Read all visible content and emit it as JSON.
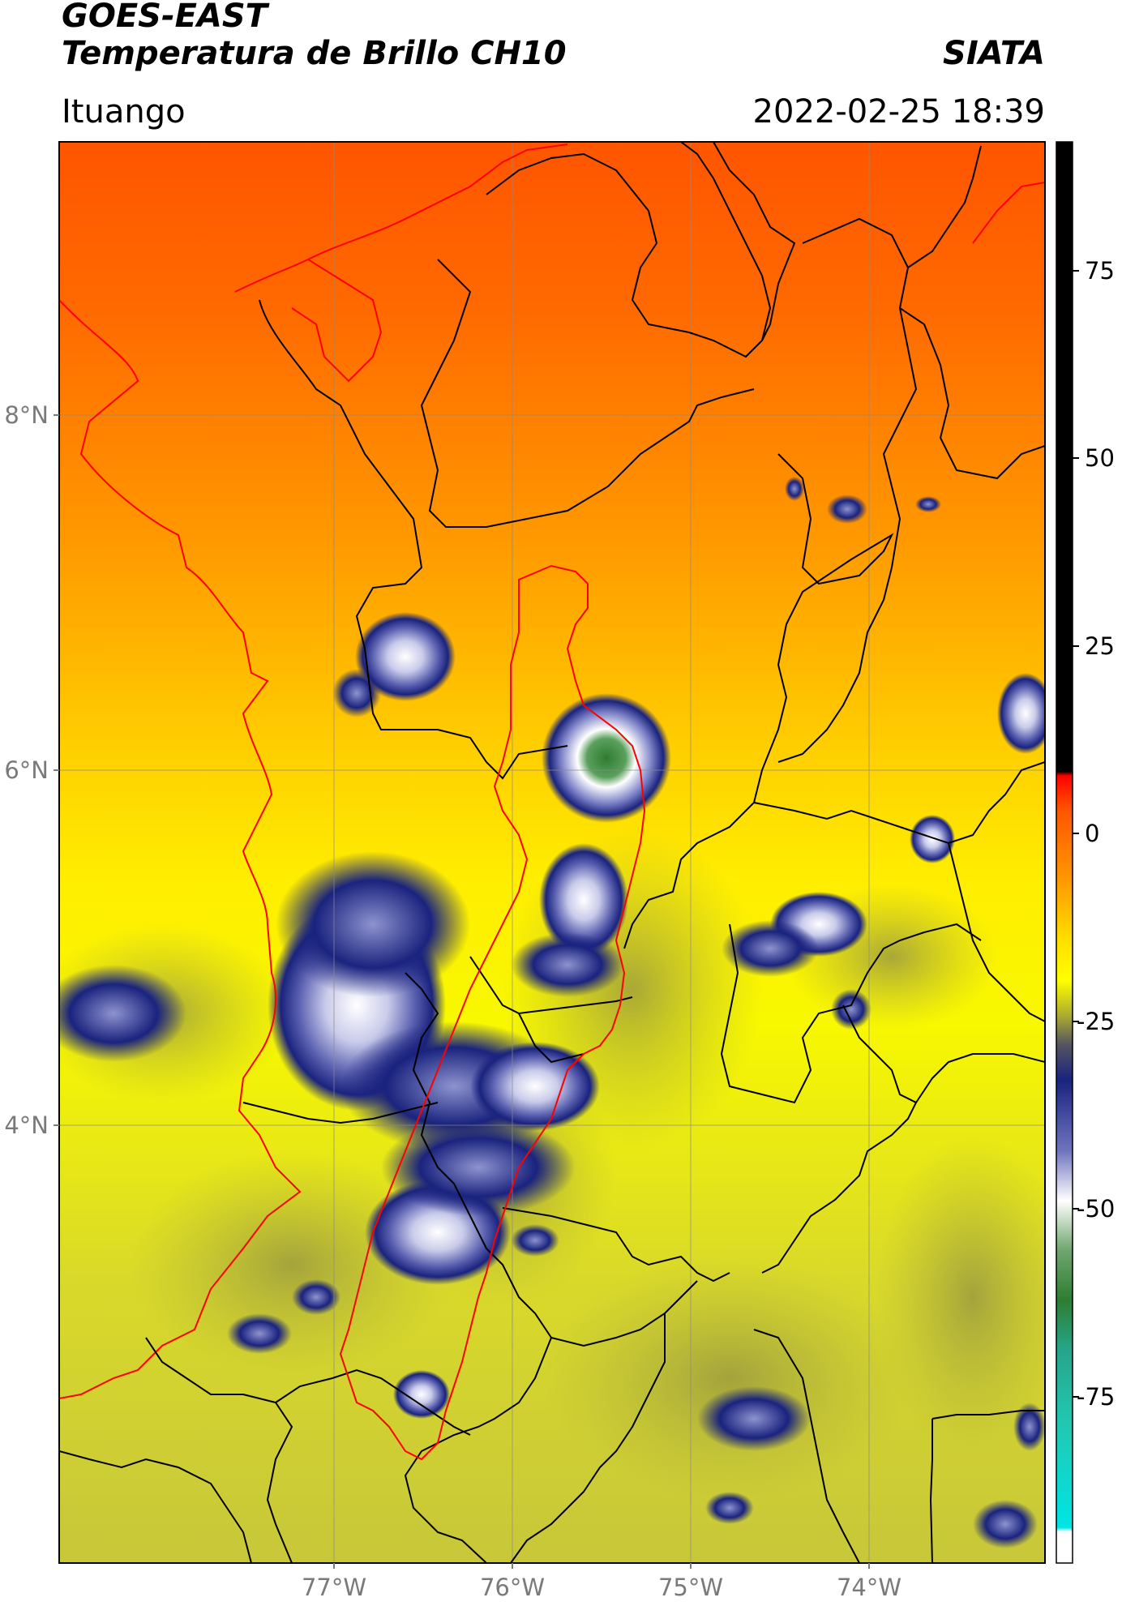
{
  "header": {
    "satellite": "GOES-EAST",
    "product": "Temperatura de Brillo CH10",
    "institution": "SIATA",
    "region": "Ituango",
    "timestamp": "2022-02-25 18:39"
  },
  "map": {
    "lat_labels": [
      "8°N",
      "6°N",
      "4°N"
    ],
    "lon_labels": [
      "77°W",
      "76°W",
      "75°W",
      "74°W"
    ],
    "colors": {
      "hot_orange": "#ff5a00",
      "orange": "#ff8c00",
      "yellow": "#ffff00",
      "olive": "#b5b53c",
      "navy": "#1a237e",
      "lavender": "#9fa3d6",
      "white": "#ffffff",
      "green": "#2e7d32",
      "teal": "#26c6a0",
      "cyan": "#00e5e5",
      "black": "#000000",
      "red": "#ff0000",
      "border": "#000000",
      "basin_outline": "#ff0000"
    }
  },
  "colorbar": {
    "ticks": [
      "75",
      "50",
      "25",
      "0",
      "-25",
      "-50",
      "-75"
    ]
  }
}
